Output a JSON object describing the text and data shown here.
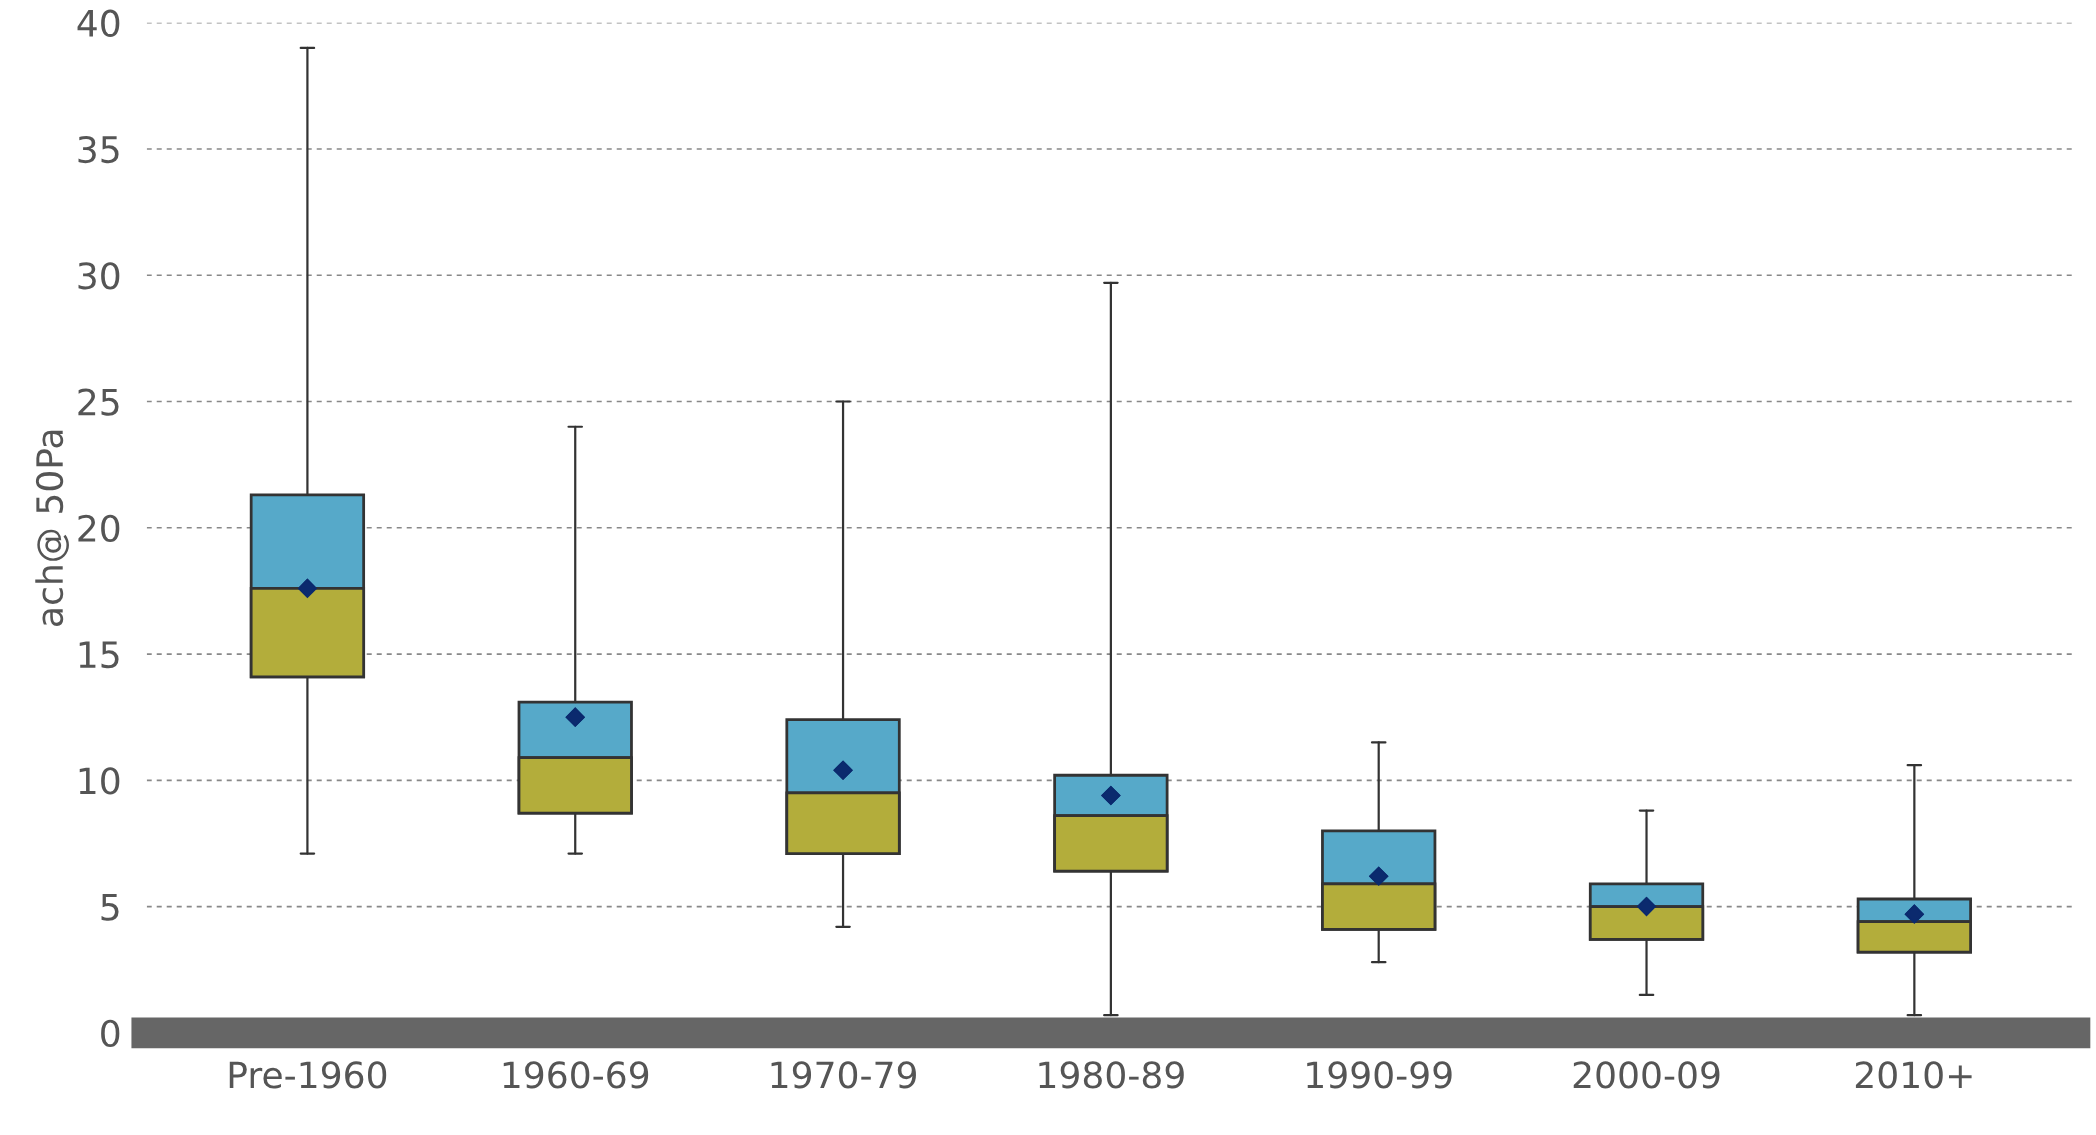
{
  "chart_data": {
    "type": "box",
    "ylabel": "ach@ 50Pa",
    "categories": [
      "Pre-1960",
      "1960-69",
      "1970-79",
      "1980-89",
      "1990-99",
      "2000-09",
      "2010+"
    ],
    "series": [
      {
        "color": "#56a9c9",
        "boxes": [
          {
            "low": 7.1,
            "q1": 14.1,
            "median": 17.6,
            "q3": 21.3,
            "high": 39.0,
            "mean": 17.6
          },
          {
            "low": 7.1,
            "q1": 8.7,
            "median": 10.9,
            "q3": 13.1,
            "high": 24.0,
            "mean": 12.5
          },
          {
            "low": 4.2,
            "q1": 7.1,
            "median": 9.5,
            "q3": 12.4,
            "high": 25.0,
            "mean": 10.4
          },
          {
            "low": 0.7,
            "q1": 6.4,
            "median": 8.6,
            "q3": 10.2,
            "high": 29.7,
            "mean": 9.4
          },
          {
            "low": 2.8,
            "q1": 4.1,
            "median": 5.9,
            "q3": 8.0,
            "high": 11.5,
            "mean": 6.2
          },
          {
            "low": 1.5,
            "q1": 3.7,
            "median": 5.0,
            "q3": 5.9,
            "high": 8.8,
            "mean": 5.0
          },
          {
            "low": 0.7,
            "q1": 3.2,
            "median": 4.4,
            "q3": 5.3,
            "high": 10.6,
            "mean": 4.7
          }
        ]
      }
    ],
    "colors": [
      "#b3ad3b",
      "#b3ad3b",
      "#b3ad3b",
      "#b3ad3b",
      "#b3ad3b",
      "#b3ad3b",
      "#b3ad3b"
    ],
    "ylim": [
      0,
      40
    ],
    "yticks": [
      0,
      5,
      10,
      15,
      20,
      25,
      30,
      35,
      40
    ],
    "grid": "y",
    "marker": "diamond"
  }
}
